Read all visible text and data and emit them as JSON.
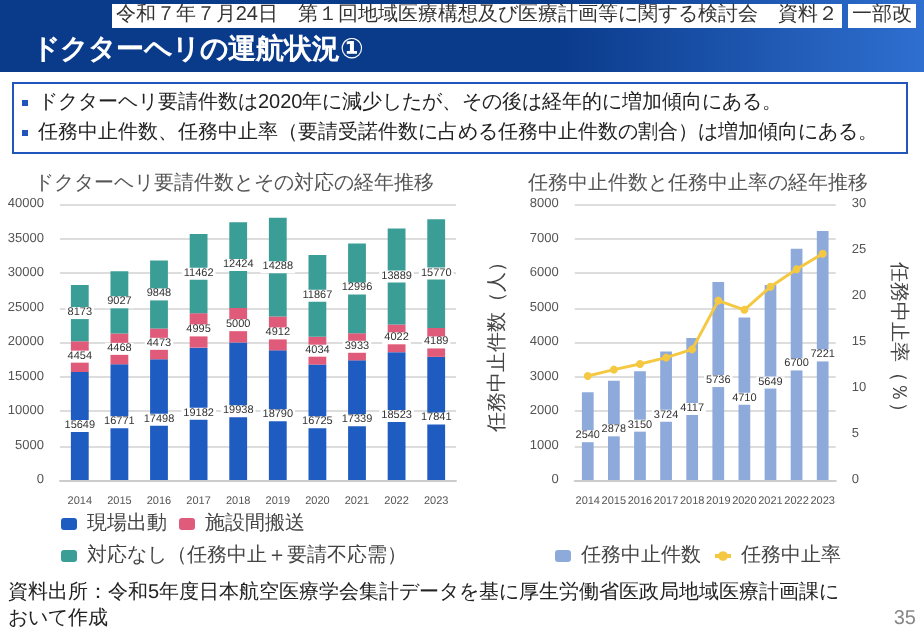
{
  "chart_data": [
    {
      "type": "other",
      "title": "ドクターヘリの運航状況①",
      "annotations": [
        "令和７年７月24日　第１回地域医療構想及び医療計画等に関する検討会　資料２",
        "一部改",
        "ドクターヘリ要請件数は2020年に減少したが、その後は経年的に増加傾向にある。",
        "任務中止件数、任務中止率（要請受諾件数に占める任務中止件数の割合）は増加傾向にある。"
      ]
    },
    {
      "type": "bar",
      "title": "ドクターヘリ要請件数とその対応の経年推移",
      "categories": [
        "2014",
        "2015",
        "2016",
        "2017",
        "2018",
        "2019",
        "2020",
        "2021",
        "2022",
        "2023"
      ],
      "stacked": true,
      "data_labels": true,
      "ylim": [
        0,
        40000
      ],
      "yticks": [
        0,
        5000,
        10000,
        15000,
        20000,
        25000,
        30000,
        35000,
        40000
      ],
      "grid": "y",
      "legend": "bottom",
      "series": [
        {
          "name": "現場出動",
          "color": "#1f5cc2",
          "values": [
            15649,
            16771,
            17498,
            19182,
            19938,
            18790,
            16725,
            17339,
            18523,
            17841
          ]
        },
        {
          "name": "施設間搬送",
          "color": "#e05a7a",
          "values": [
            4454,
            4468,
            4473,
            4995,
            5000,
            4912,
            4034,
            3933,
            4022,
            4189
          ]
        },
        {
          "name": "対応なし（任務中止＋要請不応需）",
          "color": "#3a9e96",
          "values": [
            8173,
            9027,
            9848,
            11462,
            12424,
            14288,
            11867,
            12996,
            13889,
            15770
          ]
        }
      ]
    },
    {
      "type": "bar",
      "title": "任務中止件数と任務中止率の経年推移",
      "categories": [
        "2014",
        "2015",
        "2016",
        "2017",
        "2018",
        "2019",
        "2020",
        "2021",
        "2022",
        "2023"
      ],
      "ylabel": "任務中止件数（人）",
      "y2label": "任務中止率（％）",
      "ylim": [
        0,
        8000
      ],
      "yticks": [
        0,
        1000,
        2000,
        3000,
        4000,
        5000,
        6000,
        7000,
        8000
      ],
      "y2lim": [
        0,
        30
      ],
      "y2ticks": [
        0,
        5,
        10,
        15,
        20,
        25,
        30
      ],
      "grid": "y",
      "legend": "bottom",
      "marker": "circle",
      "annotations": [
        "資料出所：令和5年度日本航空医療学会集計データを基に厚生労働省医政局地域医療計画課において作成",
        "35"
      ],
      "series": [
        {
          "name": "任務中止件数",
          "color": "#8eaadb",
          "values": [
            2540,
            2878,
            3150,
            3724,
            4117,
            5736,
            4710,
            5649,
            6700,
            7221
          ],
          "value_labels": [
            "2540",
            "2878",
            "3150",
            "3724",
            "4117",
            "5736",
            "4710",
            "5649",
            "6700",
            "7221"
          ]
        },
        {
          "name": "任務中止率",
          "type": "line",
          "axis": "y2",
          "color": "#f5c842",
          "values": [
            11.3,
            12.0,
            12.6,
            13.3,
            14.2,
            19.5,
            18.5,
            21.0,
            22.9,
            24.6
          ]
        }
      ]
    }
  ]
}
